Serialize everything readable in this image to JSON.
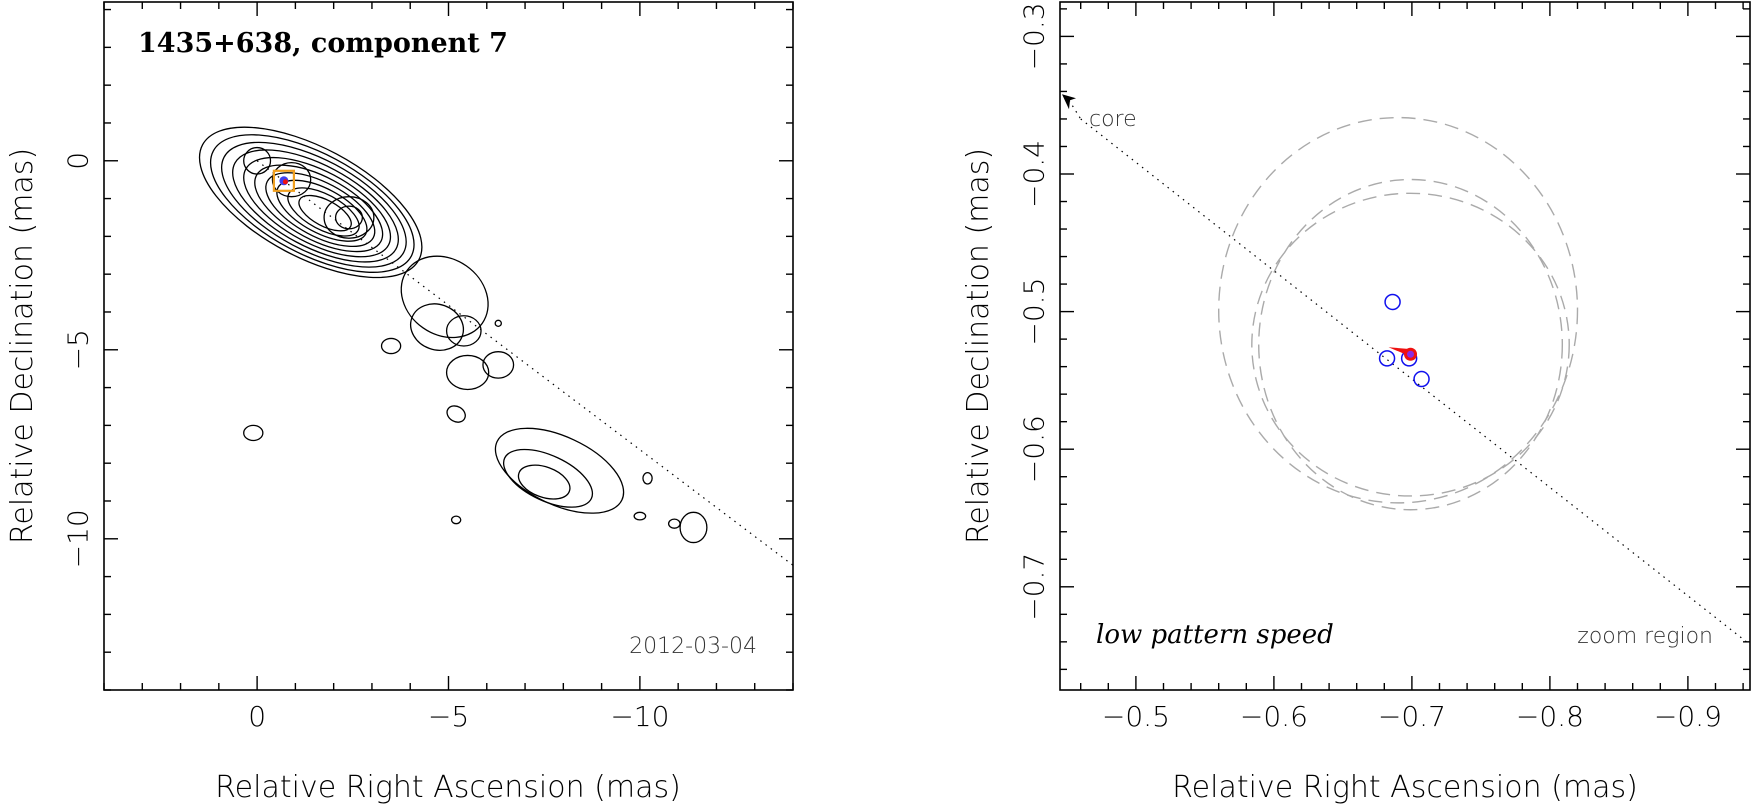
{
  "chart_data": [
    {
      "type": "scatter",
      "title": "1435+638, component 7",
      "date": "2012-03-04",
      "xlabel": "Relative Right Ascension (mas)",
      "ylabel": "Relative Declination (mas)",
      "xlim": [
        4,
        -14
      ],
      "ylim": [
        -14,
        4.2
      ],
      "xticks": [
        0,
        -5,
        -10
      ],
      "yticks": [
        0,
        -5,
        -10
      ],
      "component_position": {
        "x": -0.7,
        "y": -0.53
      },
      "jet_line": {
        "from": [
          0,
          0
        ],
        "to": [
          -14,
          -10.7
        ]
      }
    },
    {
      "type": "scatter",
      "title": "",
      "xlabel": "Relative Right Ascension (mas)",
      "ylabel": "Relative Declination (mas)",
      "xlim": [
        -0.445,
        -0.945
      ],
      "ylim": [
        -0.775,
        -0.275
      ],
      "xticks": [
        -0.5,
        -0.6,
        -0.7,
        -0.8,
        -0.9
      ],
      "yticks": [
        -0.3,
        -0.4,
        -0.5,
        -0.6,
        -0.7
      ],
      "core_label": "core",
      "left_annotation": "low pattern speed",
      "right_annotation": "zoom region",
      "epochs_blue_circles": [
        {
          "x": -0.686,
          "y": -0.493
        },
        {
          "x": -0.682,
          "y": -0.534
        },
        {
          "x": -0.698,
          "y": -0.534
        },
        {
          "x": -0.707,
          "y": -0.549
        }
      ],
      "fitted_position": {
        "x": -0.699,
        "y": -0.531
      },
      "uncertainty_ellipses": [
        {
          "cx": -0.69,
          "cy": -0.499,
          "rx": 0.13,
          "ry": 0.14
        },
        {
          "cx": -0.699,
          "cy": -0.524,
          "rx": 0.115,
          "ry": 0.11
        },
        {
          "cx": -0.699,
          "cy": -0.524,
          "rx": 0.11,
          "ry": 0.12
        }
      ],
      "colors": {
        "epochs": "#1010ee",
        "fit": "#ee1111",
        "ellipse": "#aaaaaa"
      }
    }
  ]
}
